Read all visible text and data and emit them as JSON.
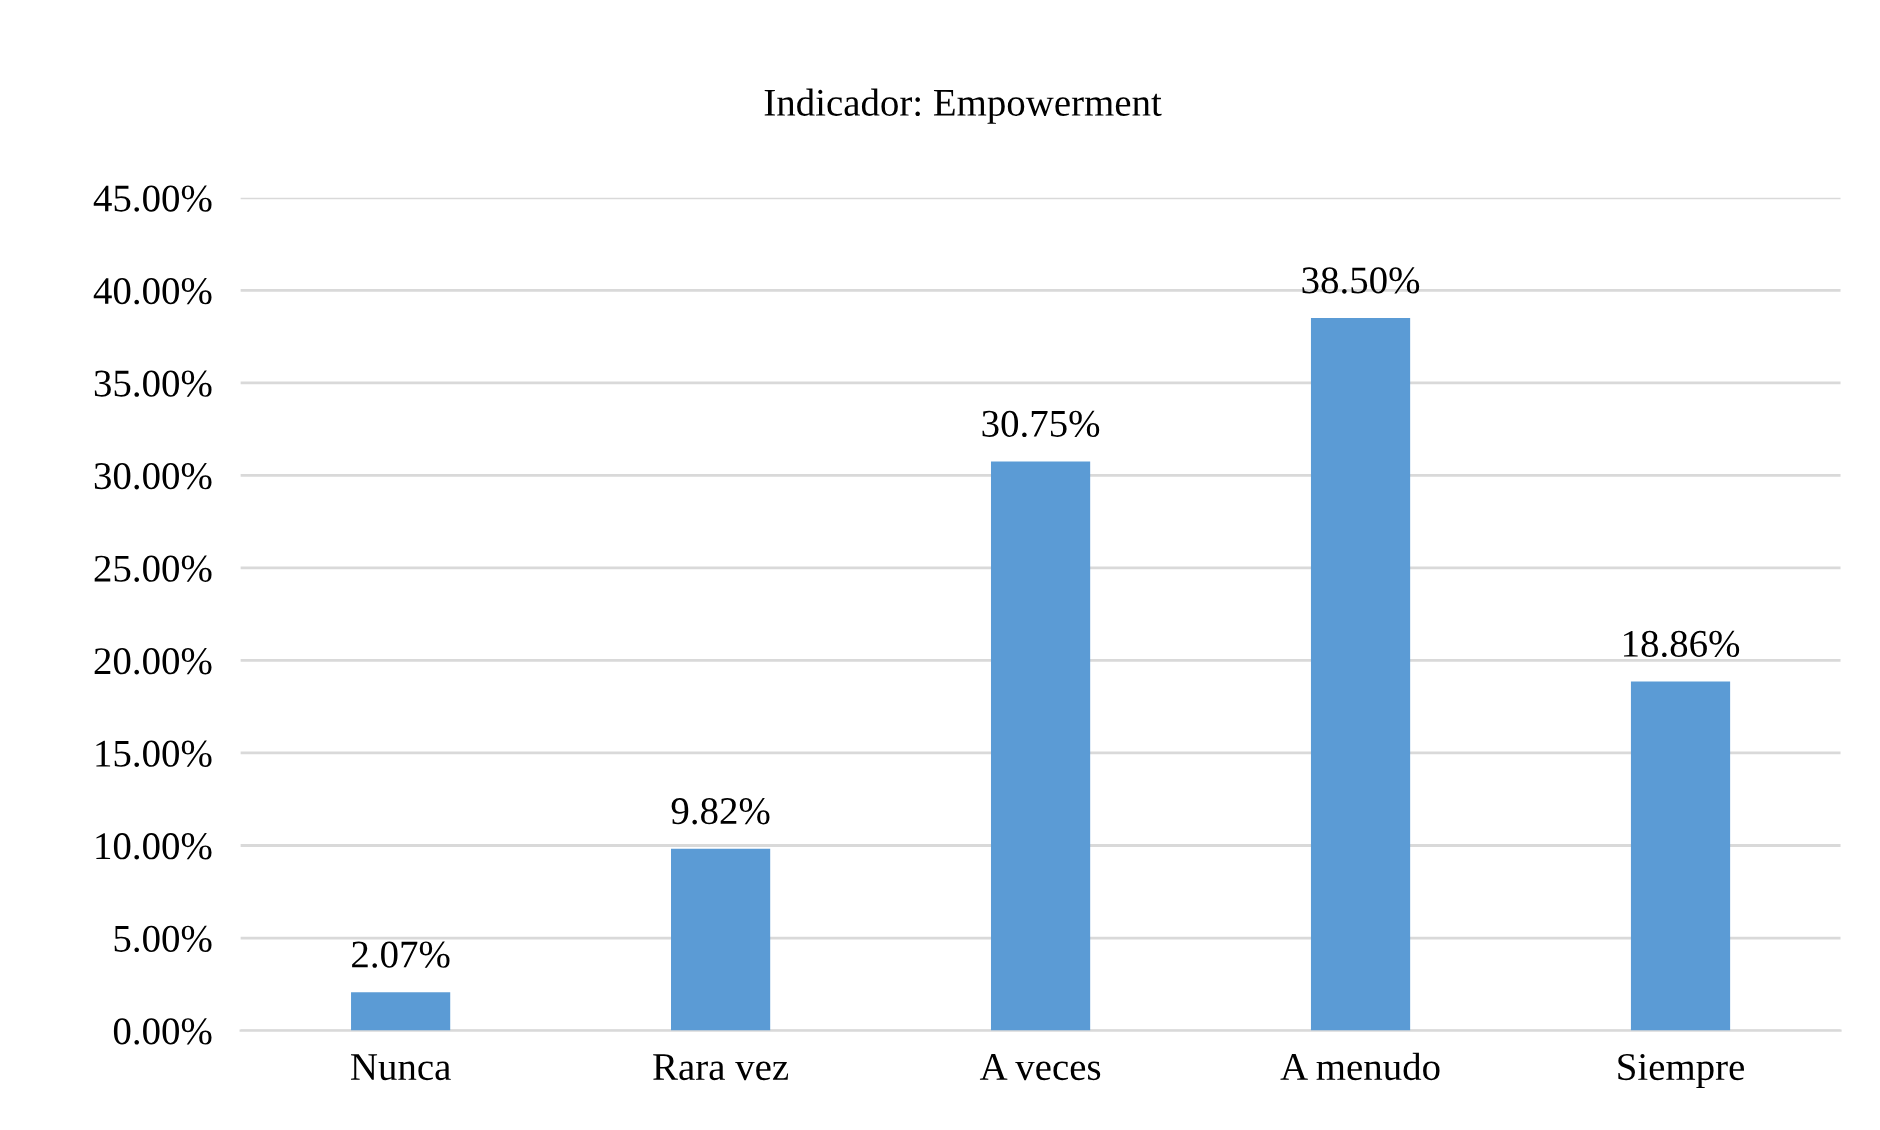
{
  "chart_data": {
    "type": "bar",
    "title": "Indicador: Empowerment",
    "categories": [
      "Nunca",
      "Rara vez",
      "A veces",
      "A menudo",
      "Siempre"
    ],
    "values": [
      2.07,
      9.82,
      30.75,
      38.5,
      18.86
    ],
    "value_labels": [
      "2.07%",
      "9.82%",
      "30.75%",
      "38.50%",
      "18.86%"
    ],
    "color": "#5b9bd5",
    "ylim": [
      0,
      45
    ],
    "yticks": [
      {
        "value": 0,
        "label": "0.00%"
      },
      {
        "value": 5,
        "label": "5.00%"
      },
      {
        "value": 10,
        "label": "10.00%"
      },
      {
        "value": 15,
        "label": "15.00%"
      },
      {
        "value": 20,
        "label": "20.00%"
      },
      {
        "value": 25,
        "label": "25.00%"
      },
      {
        "value": 30,
        "label": "30.00%"
      },
      {
        "value": 35,
        "label": "35.00%"
      },
      {
        "value": 40,
        "label": "40.00%"
      },
      {
        "value": 45,
        "label": "45.00%"
      }
    ],
    "grid": "y",
    "legend": false
  }
}
